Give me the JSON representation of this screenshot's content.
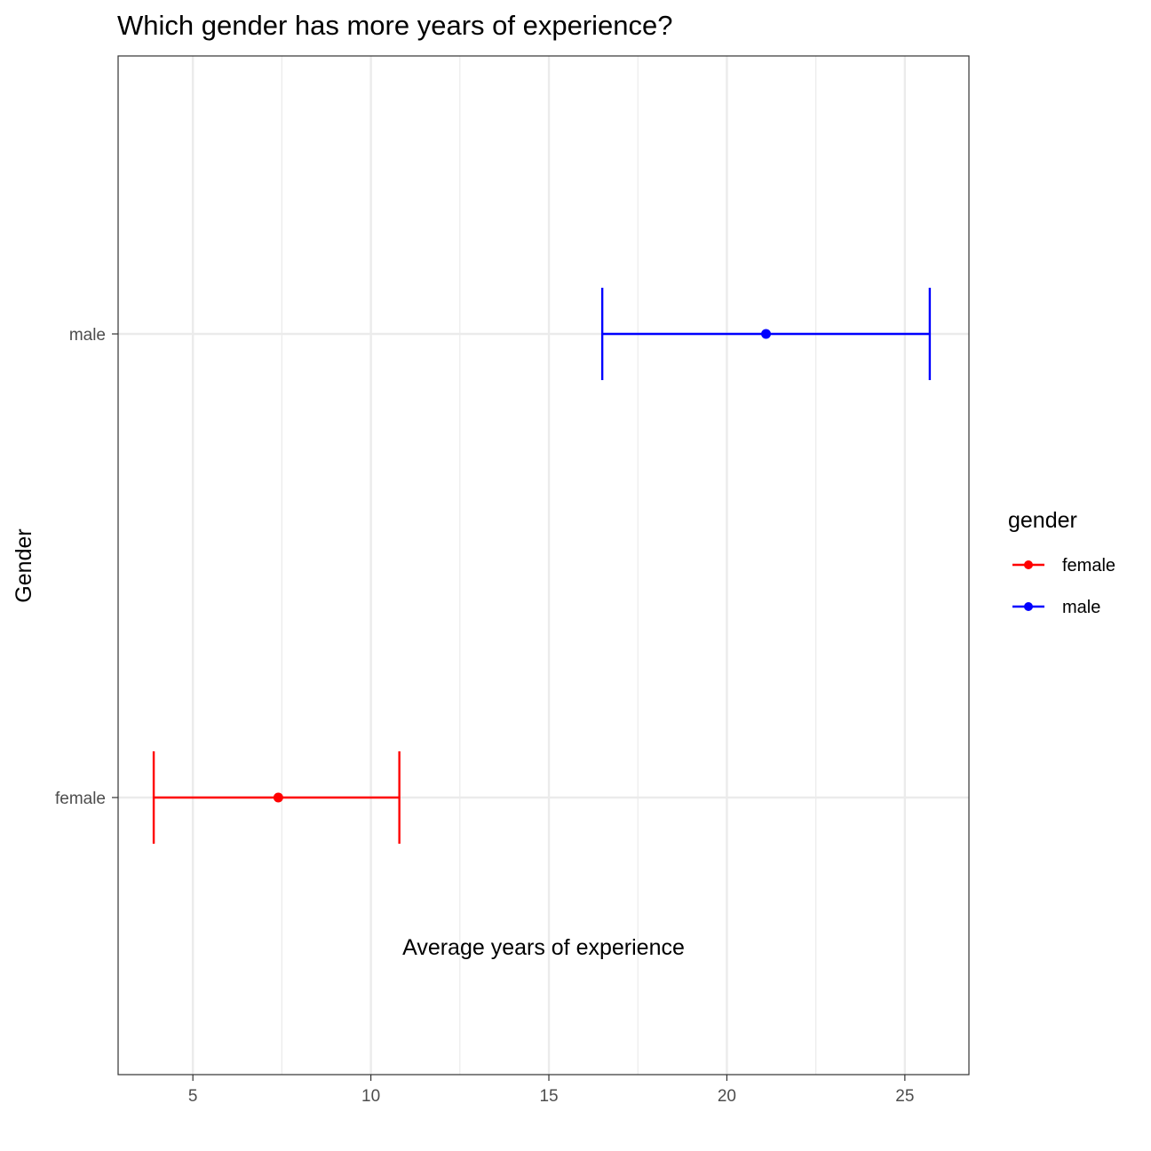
{
  "chart_data": {
    "type": "errorbar",
    "title": "Which gender has more years of experience?",
    "xlabel": "Average years of experience",
    "ylabel": "Gender",
    "xlim": [
      2.9,
      26.8
    ],
    "x_ticks": [
      5,
      10,
      15,
      20,
      25
    ],
    "x_tick_labels": [
      "5",
      "10",
      "15",
      "20",
      "25"
    ],
    "categories": [
      "female",
      "male"
    ],
    "grid": true,
    "legend": {
      "title": "gender",
      "placement": "right",
      "entries": [
        "female",
        "male"
      ]
    },
    "series": [
      {
        "name": "female",
        "color": "#ff0000",
        "mean": 7.4,
        "lower": 3.9,
        "upper": 10.8
      },
      {
        "name": "male",
        "color": "#0000ff",
        "mean": 21.1,
        "lower": 16.5,
        "upper": 25.7
      }
    ]
  }
}
